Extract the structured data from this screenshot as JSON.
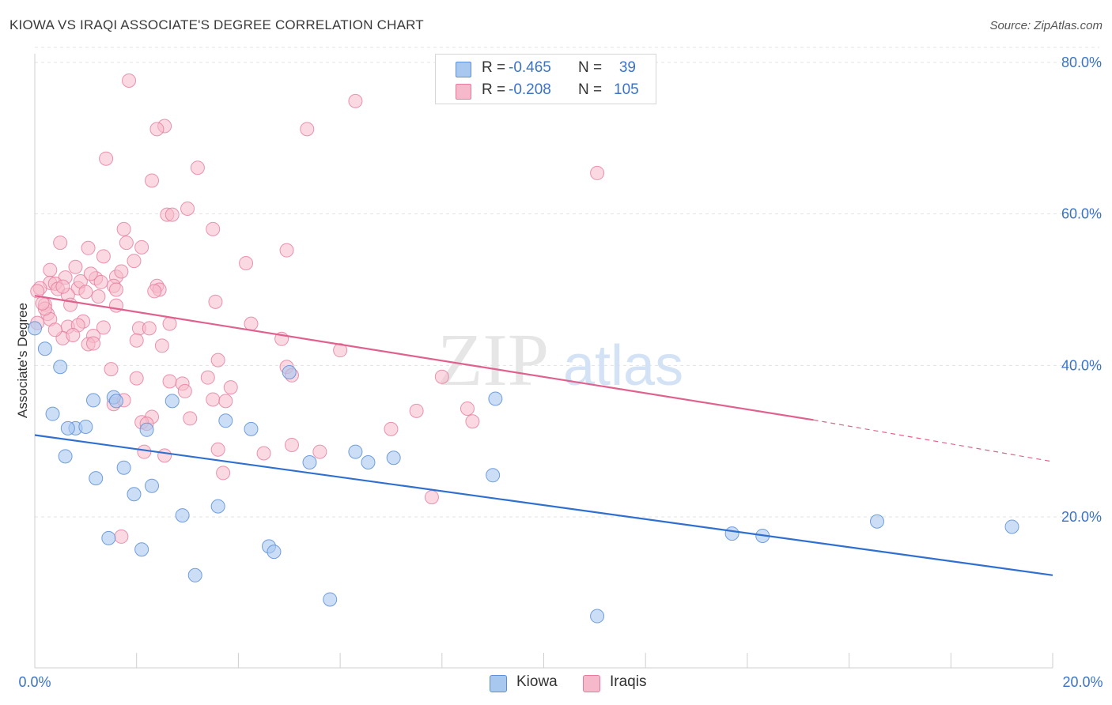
{
  "header": {
    "title": "KIOWA VS IRAQI ASSOCIATE'S DEGREE CORRELATION CHART",
    "source": "Source: ZipAtlas.com"
  },
  "watermark": {
    "zip": "ZIP",
    "atlas": "atlas"
  },
  "legend": {
    "kiowa": {
      "r_label": "R = ",
      "r_value": "-0.465",
      "n_label": "N = ",
      "n_value": "39"
    },
    "iraqis": {
      "r_label": "R = ",
      "r_value": "-0.208",
      "n_label": "N = ",
      "n_value": "105"
    }
  },
  "colors": {
    "kiowa_fill": "#a9c8f0",
    "kiowa_stroke": "#5b8fd6",
    "kiowa_line": "#2e6fd0",
    "iraqi_fill": "#f6b9cb",
    "iraqi_stroke": "#e57a9c",
    "iraqi_line": "#e0608e",
    "axis_text": "#3a73c8",
    "grid": "#e3e3e3"
  },
  "chart_data": {
    "type": "scatter",
    "title": "KIOWA VS IRAQI ASSOCIATE'S DEGREE CORRELATION CHART",
    "xlabel": "",
    "ylabel": "Associate's Degree",
    "xlim": [
      0,
      20
    ],
    "ylim": [
      0,
      82
    ],
    "x_tick_labels": [
      "0.0%",
      "20.0%"
    ],
    "y_ticks": [
      20,
      40,
      60,
      80
    ],
    "y_tick_labels": [
      "20.0%",
      "40.0%",
      "60.0%",
      "80.0%"
    ],
    "grid": true,
    "legend_position": "top-center",
    "series": [
      {
        "name": "Kiowa",
        "points": [
          [
            0.0,
            44.9
          ],
          [
            0.2,
            42.2
          ],
          [
            0.5,
            39.8
          ],
          [
            0.35,
            33.6
          ],
          [
            0.8,
            31.7
          ],
          [
            1.0,
            31.9
          ],
          [
            0.65,
            31.7
          ],
          [
            0.6,
            28.0
          ],
          [
            1.15,
            35.4
          ],
          [
            1.55,
            35.8
          ],
          [
            1.6,
            35.3
          ],
          [
            1.2,
            25.1
          ],
          [
            1.75,
            26.5
          ],
          [
            1.95,
            23.0
          ],
          [
            2.3,
            24.1
          ],
          [
            1.45,
            17.2
          ],
          [
            2.1,
            15.7
          ],
          [
            2.2,
            31.5
          ],
          [
            2.7,
            35.3
          ],
          [
            2.9,
            20.2
          ],
          [
            3.15,
            12.3
          ],
          [
            3.6,
            21.4
          ],
          [
            3.75,
            32.7
          ],
          [
            4.25,
            31.6
          ],
          [
            4.6,
            16.1
          ],
          [
            4.7,
            15.4
          ],
          [
            5.0,
            39.1
          ],
          [
            5.4,
            27.2
          ],
          [
            5.8,
            9.1
          ],
          [
            6.3,
            28.6
          ],
          [
            6.55,
            27.2
          ],
          [
            7.05,
            27.8
          ],
          [
            9.0,
            25.5
          ],
          [
            9.05,
            35.6
          ],
          [
            11.05,
            6.9
          ],
          [
            13.7,
            17.8
          ],
          [
            14.3,
            17.5
          ],
          [
            16.55,
            19.4
          ],
          [
            19.2,
            18.7
          ]
        ],
        "trend": {
          "x": [
            0,
            20
          ],
          "y": [
            30.8,
            12.3
          ]
        }
      },
      {
        "name": "Iraqis",
        "points": [
          [
            1.85,
            77.6
          ],
          [
            6.3,
            74.9
          ],
          [
            2.55,
            71.6
          ],
          [
            2.4,
            71.2
          ],
          [
            5.35,
            71.2
          ],
          [
            1.4,
            67.3
          ],
          [
            3.2,
            66.1
          ],
          [
            11.05,
            65.4
          ],
          [
            2.3,
            64.4
          ],
          [
            3.0,
            60.7
          ],
          [
            2.6,
            59.9
          ],
          [
            2.7,
            59.9
          ],
          [
            3.5,
            58.0
          ],
          [
            1.75,
            58.0
          ],
          [
            0.5,
            56.2
          ],
          [
            1.8,
            56.2
          ],
          [
            1.05,
            55.5
          ],
          [
            2.1,
            55.6
          ],
          [
            4.95,
            55.2
          ],
          [
            1.35,
            54.4
          ],
          [
            1.95,
            53.8
          ],
          [
            4.15,
            53.5
          ],
          [
            0.8,
            53.0
          ],
          [
            0.3,
            52.6
          ],
          [
            1.6,
            51.7
          ],
          [
            1.2,
            51.5
          ],
          [
            1.7,
            52.4
          ],
          [
            0.6,
            51.6
          ],
          [
            0.3,
            50.9
          ],
          [
            0.4,
            50.8
          ],
          [
            0.85,
            50.2
          ],
          [
            1.55,
            50.5
          ],
          [
            2.4,
            50.5
          ],
          [
            0.1,
            50.2
          ],
          [
            0.45,
            50.1
          ],
          [
            0.9,
            51.1
          ],
          [
            0.05,
            49.8
          ],
          [
            0.65,
            49.3
          ],
          [
            1.0,
            49.7
          ],
          [
            1.25,
            49.1
          ],
          [
            1.6,
            50.0
          ],
          [
            2.45,
            50.0
          ],
          [
            0.2,
            48.0
          ],
          [
            0.7,
            48.0
          ],
          [
            1.6,
            47.9
          ],
          [
            3.55,
            48.4
          ],
          [
            0.25,
            46.8
          ],
          [
            0.3,
            46.1
          ],
          [
            0.05,
            45.6
          ],
          [
            0.95,
            45.8
          ],
          [
            0.65,
            45.1
          ],
          [
            0.85,
            45.3
          ],
          [
            1.35,
            45.0
          ],
          [
            2.05,
            44.9
          ],
          [
            2.25,
            44.9
          ],
          [
            2.65,
            45.5
          ],
          [
            4.25,
            45.5
          ],
          [
            0.55,
            43.6
          ],
          [
            0.75,
            44.0
          ],
          [
            1.15,
            43.9
          ],
          [
            1.05,
            42.8
          ],
          [
            1.15,
            42.9
          ],
          [
            2.0,
            43.3
          ],
          [
            2.5,
            42.6
          ],
          [
            4.85,
            43.5
          ],
          [
            6.0,
            42.0
          ],
          [
            3.6,
            40.7
          ],
          [
            4.95,
            39.8
          ],
          [
            1.5,
            39.5
          ],
          [
            2.0,
            38.3
          ],
          [
            5.05,
            38.7
          ],
          [
            8.0,
            38.5
          ],
          [
            3.4,
            38.4
          ],
          [
            2.65,
            37.9
          ],
          [
            3.85,
            37.1
          ],
          [
            2.9,
            37.6
          ],
          [
            2.95,
            36.6
          ],
          [
            1.55,
            34.9
          ],
          [
            1.75,
            35.4
          ],
          [
            3.5,
            35.5
          ],
          [
            3.75,
            35.3
          ],
          [
            7.5,
            34.0
          ],
          [
            8.5,
            34.3
          ],
          [
            2.3,
            33.2
          ],
          [
            2.1,
            32.5
          ],
          [
            2.2,
            32.3
          ],
          [
            3.05,
            33.0
          ],
          [
            8.6,
            32.6
          ],
          [
            7.0,
            31.6
          ],
          [
            5.05,
            29.5
          ],
          [
            3.6,
            28.9
          ],
          [
            4.5,
            28.4
          ],
          [
            5.6,
            28.6
          ],
          [
            2.15,
            28.6
          ],
          [
            2.55,
            28.1
          ],
          [
            3.7,
            25.8
          ],
          [
            7.8,
            22.6
          ],
          [
            1.7,
            17.4
          ],
          [
            0.2,
            47.5
          ],
          [
            0.15,
            48.2
          ],
          [
            0.4,
            44.7
          ],
          [
            1.3,
            51.0
          ],
          [
            0.55,
            50.4
          ],
          [
            2.35,
            49.8
          ],
          [
            1.1,
            52.1
          ]
        ],
        "trend": {
          "x": [
            0,
            15.3
          ],
          "y": [
            49.2,
            32.8
          ]
        },
        "trend_dashed": {
          "x": [
            15.3,
            20
          ],
          "y": [
            32.8,
            27.3
          ]
        }
      }
    ]
  },
  "bottom_legend": {
    "kiowa": "Kiowa",
    "iraqis": "Iraqis"
  }
}
